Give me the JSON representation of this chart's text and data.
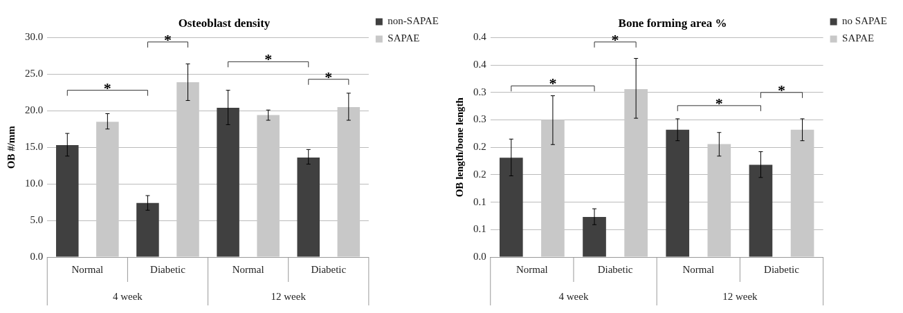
{
  "chart_data": [
    {
      "type": "bar",
      "title": "Osteoblast density",
      "ylabel": "OB #/mm",
      "categories": [
        "Normal",
        "Diabetic",
        "Normal",
        "Diabetic"
      ],
      "series": [
        {
          "name": "non-SAPAE",
          "color": "#404040",
          "values": [
            15.3,
            7.4,
            20.4,
            13.6
          ],
          "errors": [
            [
              13.8,
              16.9
            ],
            [
              6.4,
              8.4
            ],
            [
              18.1,
              22.8
            ],
            [
              12.7,
              14.7
            ]
          ]
        },
        {
          "name": "SAPAE",
          "color": "#c8c8c8",
          "values": [
            18.5,
            23.9,
            19.4,
            20.5
          ],
          "errors": [
            [
              17.5,
              19.6
            ],
            [
              21.4,
              26.4
            ],
            [
              18.7,
              20.1
            ],
            [
              18.7,
              22.4
            ]
          ]
        }
      ],
      "ylim": [
        0,
        30
      ],
      "yticks": [
        {
          "value": 0,
          "label": "0.0"
        },
        {
          "value": 5,
          "label": "5.0"
        },
        {
          "value": 10,
          "label": "10.0"
        },
        {
          "value": 15,
          "label": "15.0"
        },
        {
          "value": 20,
          "label": "20.0"
        },
        {
          "value": 25,
          "label": "25.0"
        },
        {
          "value": 30,
          "label": "30.0"
        }
      ],
      "grid": "y",
      "legend": "top right",
      "annotations": [
        "*",
        "*",
        "*",
        "*",
        "4 week",
        "12 week"
      ]
    },
    {
      "type": "bar",
      "title": "Bone forming area %",
      "ylabel": "OB length/bone length",
      "categories": [
        "Normal",
        "Diabetic",
        "Normal",
        "Diabetic"
      ],
      "series": [
        {
          "name": "no SAPAE",
          "color": "#404040",
          "values": [
            0.181,
            0.073,
            0.232,
            0.168
          ],
          "errors": [
            [
              0.148,
              0.215
            ],
            [
              0.059,
              0.088
            ],
            [
              0.212,
              0.252
            ],
            [
              0.145,
              0.192
            ]
          ]
        },
        {
          "name": "SAPAE",
          "color": "#c8c8c8",
          "values": [
            0.25,
            0.306,
            0.206,
            0.232
          ],
          "errors": [
            [
              0.205,
              0.294
            ],
            [
              0.253,
              0.362
            ],
            [
              0.184,
              0.227
            ],
            [
              0.212,
              0.252
            ]
          ]
        }
      ],
      "ylim": [
        0,
        0.4
      ],
      "yticks": [
        {
          "value": 0,
          "label": "0.0"
        },
        {
          "value": 0.05,
          "label": "0.1"
        },
        {
          "value": 0.1,
          "label": "0.1"
        },
        {
          "value": 0.15,
          "label": "0.2"
        },
        {
          "value": 0.2,
          "label": "0.2"
        },
        {
          "value": 0.25,
          "label": "0.3"
        },
        {
          "value": 0.3,
          "label": "0.3"
        },
        {
          "value": 0.35,
          "label": "0.4"
        },
        {
          "value": 0.4,
          "label": "0.4"
        }
      ],
      "grid": "y",
      "legend": "top right",
      "annotations": [
        "*",
        "*",
        "*",
        "*",
        "4 week",
        "12 week"
      ]
    }
  ]
}
